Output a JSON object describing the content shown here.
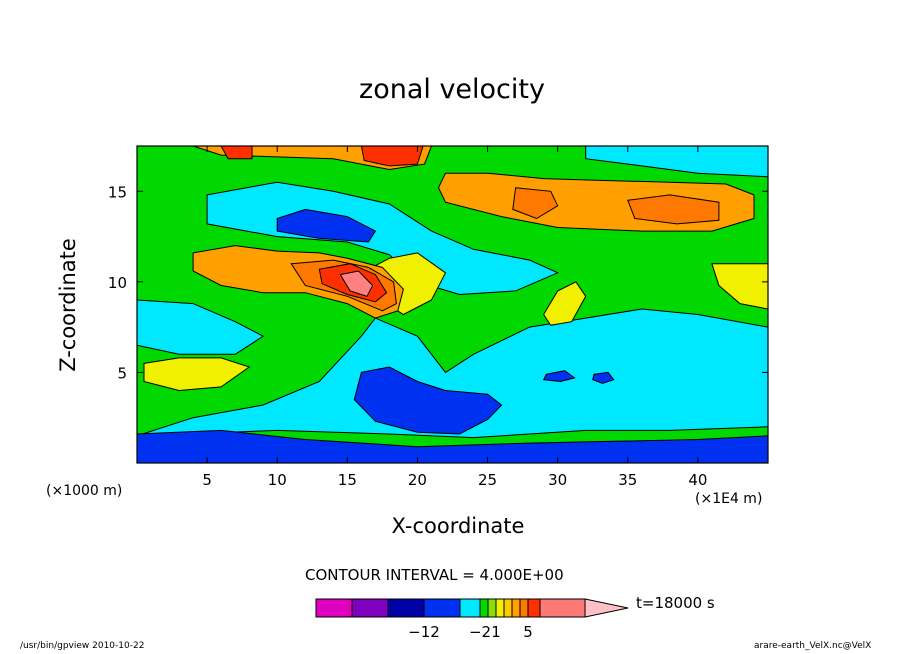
{
  "chart_data": {
    "type": "heatmap",
    "title": "zonal velocity",
    "xlabel": "X-coordinate",
    "ylabel": "Z-coordinate",
    "x_unit_left": "(×1000 m)",
    "x_unit_right": "(×1E4 m)",
    "xlim": [
      0,
      45
    ],
    "ylim": [
      0,
      17.5
    ],
    "xticks": [
      5,
      10,
      15,
      20,
      25,
      30,
      35,
      40
    ],
    "yticks": [
      5,
      10,
      15
    ],
    "contour_interval_label": "CONTOUR INTERVAL = 4.000E+00",
    "time_label": "t=18000 s",
    "colorbar": {
      "colors": [
        "#e000c0",
        "#8000c0",
        "#0000a8",
        "#0030f0",
        "#00e8ff",
        "#00d800",
        "#88e000",
        "#f0f000",
        "#ffc800",
        "#ffa000",
        "#ff7800",
        "#ff3000",
        "#ff7878",
        "#ffc0c8"
      ],
      "tick_labels": [
        "-12",
        "-2",
        "1",
        "5"
      ]
    },
    "regions": [
      {
        "level": "cyan",
        "points": [
          [
            0,
            1.5
          ],
          [
            4,
            2.5
          ],
          [
            9,
            3.2
          ],
          [
            13,
            4.5
          ],
          [
            16,
            7
          ],
          [
            17,
            8
          ],
          [
            20,
            7
          ],
          [
            22,
            5
          ],
          [
            24,
            6
          ],
          [
            28,
            7.5
          ],
          [
            32,
            8
          ],
          [
            36,
            8.5
          ],
          [
            40,
            8.2
          ],
          [
            45,
            7.5
          ],
          [
            45,
            2
          ],
          [
            38,
            1.8
          ],
          [
            32,
            1.8
          ],
          [
            24,
            1.4
          ],
          [
            18,
            1.6
          ],
          [
            10,
            1.8
          ]
        ]
      },
      {
        "level": "cyan",
        "points": [
          [
            0,
            9
          ],
          [
            4,
            8.8
          ],
          [
            7,
            7.8
          ],
          [
            9,
            7
          ],
          [
            7,
            6
          ],
          [
            3,
            6
          ],
          [
            0,
            6.5
          ]
        ]
      },
      {
        "level": "cyan",
        "points": [
          [
            5,
            14.8
          ],
          [
            10,
            15.5
          ],
          [
            14,
            15
          ],
          [
            18,
            14.3
          ],
          [
            21,
            12.8
          ],
          [
            24,
            11.8
          ],
          [
            28,
            11.2
          ],
          [
            30,
            10.5
          ],
          [
            27,
            9.5
          ],
          [
            23,
            9.3
          ],
          [
            20,
            10
          ],
          [
            18,
            11.5
          ],
          [
            15,
            12.2
          ],
          [
            10,
            12.5
          ],
          [
            5,
            13.2
          ]
        ]
      },
      {
        "level": "cyan",
        "points": [
          [
            32,
            17.5
          ],
          [
            45,
            17.5
          ],
          [
            45,
            15.8
          ],
          [
            40,
            16
          ],
          [
            36,
            16.4
          ],
          [
            32,
            16.8
          ]
        ]
      },
      {
        "level": "blue",
        "points": [
          [
            10,
            13.5
          ],
          [
            12,
            14
          ],
          [
            15,
            13.6
          ],
          [
            17,
            12.8
          ],
          [
            16.5,
            12.2
          ],
          [
            13,
            12.4
          ],
          [
            10,
            12.8
          ]
        ]
      },
      {
        "level": "blue",
        "points": [
          [
            16,
            5
          ],
          [
            18,
            5.3
          ],
          [
            20,
            4.5
          ],
          [
            22,
            4
          ],
          [
            25,
            3.8
          ],
          [
            26,
            3.2
          ],
          [
            25,
            2.4
          ],
          [
            23,
            1.6
          ],
          [
            20,
            1.7
          ],
          [
            17,
            2.3
          ],
          [
            15.5,
            3.5
          ]
        ]
      },
      {
        "level": "blue",
        "points": [
          [
            0,
            0
          ],
          [
            45,
            0
          ],
          [
            45,
            1.5
          ],
          [
            40,
            1.3
          ],
          [
            34,
            1.2
          ],
          [
            28,
            1.1
          ],
          [
            20,
            0.9
          ],
          [
            12,
            1.3
          ],
          [
            6,
            1.8
          ],
          [
            0,
            1.6
          ]
        ]
      },
      {
        "level": "blue",
        "points": [
          [
            29.2,
            4.9
          ],
          [
            30.5,
            5.1
          ],
          [
            31.2,
            4.7
          ],
          [
            30.2,
            4.5
          ],
          [
            29,
            4.6
          ]
        ]
      },
      {
        "level": "blue",
        "points": [
          [
            32.6,
            4.9
          ],
          [
            33.6,
            5
          ],
          [
            34,
            4.6
          ],
          [
            33.2,
            4.4
          ],
          [
            32.5,
            4.6
          ]
        ]
      },
      {
        "level": "yellow",
        "points": [
          [
            0.5,
            5.5
          ],
          [
            3,
            5.8
          ],
          [
            6,
            5.8
          ],
          [
            8,
            5.3
          ],
          [
            6,
            4.2
          ],
          [
            3,
            4
          ],
          [
            0.5,
            4.5
          ]
        ]
      },
      {
        "level": "yellow",
        "points": [
          [
            29,
            8.2
          ],
          [
            30,
            9.5
          ],
          [
            31.3,
            10
          ],
          [
            32,
            9.2
          ],
          [
            31,
            7.8
          ],
          [
            29.5,
            7.6
          ]
        ]
      },
      {
        "level": "yellow",
        "points": [
          [
            41,
            11
          ],
          [
            45,
            11
          ],
          [
            45,
            8.5
          ],
          [
            43,
            8.8
          ],
          [
            41.5,
            9.8
          ]
        ]
      },
      {
        "level": "yellow",
        "points": [
          [
            16,
            10.5
          ],
          [
            18,
            11.3
          ],
          [
            20,
            11.6
          ],
          [
            22,
            10.5
          ],
          [
            21,
            9
          ],
          [
            19,
            8.2
          ],
          [
            17,
            9.2
          ]
        ]
      },
      {
        "level": "orange",
        "points": [
          [
            22,
            16
          ],
          [
            25,
            16
          ],
          [
            29,
            15.7
          ],
          [
            33,
            15.6
          ],
          [
            38,
            15.5
          ],
          [
            42,
            15.4
          ],
          [
            44,
            14.8
          ],
          [
            44,
            13.5
          ],
          [
            41,
            12.8
          ],
          [
            36,
            12.8
          ],
          [
            30,
            13
          ],
          [
            26,
            13.6
          ],
          [
            22,
            14.4
          ],
          [
            21.5,
            15.2
          ]
        ]
      },
      {
        "level": "orange",
        "points": [
          [
            4,
            11.6
          ],
          [
            7,
            12
          ],
          [
            10,
            11.7
          ],
          [
            13,
            11.6
          ],
          [
            15,
            11.3
          ],
          [
            17.5,
            10.8
          ],
          [
            19,
            9.6
          ],
          [
            18.6,
            8.4
          ],
          [
            17,
            8
          ],
          [
            15,
            8.8
          ],
          [
            12,
            9.4
          ],
          [
            9,
            9.4
          ],
          [
            6,
            9.8
          ],
          [
            4,
            10.6
          ]
        ]
      },
      {
        "level": "orange",
        "points": [
          [
            4,
            17.5
          ],
          [
            21,
            17.5
          ],
          [
            20.5,
            16.5
          ],
          [
            18,
            16.2
          ],
          [
            14,
            16.8
          ],
          [
            10,
            16.9
          ],
          [
            6,
            17
          ]
        ]
      },
      {
        "level": "darkorange",
        "points": [
          [
            27,
            15.2
          ],
          [
            29.5,
            15
          ],
          [
            30,
            14.2
          ],
          [
            28.5,
            13.5
          ],
          [
            26.8,
            14
          ]
        ]
      },
      {
        "level": "darkorange",
        "points": [
          [
            35,
            14.5
          ],
          [
            38,
            14.8
          ],
          [
            41.5,
            14.4
          ],
          [
            41.5,
            13.4
          ],
          [
            38.5,
            13.2
          ],
          [
            35.5,
            13.5
          ]
        ]
      },
      {
        "level": "darkorange",
        "points": [
          [
            11,
            11
          ],
          [
            14,
            11.2
          ],
          [
            16.5,
            10.8
          ],
          [
            18.3,
            10
          ],
          [
            18.5,
            8.8
          ],
          [
            17.5,
            8.4
          ],
          [
            15,
            9.2
          ],
          [
            12,
            9.8
          ]
        ]
      },
      {
        "level": "red",
        "points": [
          [
            13,
            10.7
          ],
          [
            15.2,
            11
          ],
          [
            17,
            10.4
          ],
          [
            17.8,
            9.4
          ],
          [
            17,
            8.9
          ],
          [
            15,
            9.3
          ],
          [
            13.2,
            9.9
          ]
        ]
      },
      {
        "level": "red",
        "points": [
          [
            6,
            17.5
          ],
          [
            8.2,
            17.5
          ],
          [
            8.2,
            16.8
          ],
          [
            6.5,
            16.8
          ]
        ]
      },
      {
        "level": "red",
        "points": [
          [
            16,
            17.5
          ],
          [
            20.4,
            17.5
          ],
          [
            20,
            16.5
          ],
          [
            18,
            16.4
          ],
          [
            16.2,
            16.7
          ]
        ]
      },
      {
        "level": "pink",
        "points": [
          [
            14.5,
            10.4
          ],
          [
            15.8,
            10.6
          ],
          [
            16.8,
            9.8
          ],
          [
            16.4,
            9.2
          ],
          [
            15.2,
            9.5
          ]
        ]
      }
    ]
  },
  "footer": {
    "left": "/usr/bin/gpview  2010-10-22",
    "right": "arare-earth_VelX.nc@VelX"
  }
}
